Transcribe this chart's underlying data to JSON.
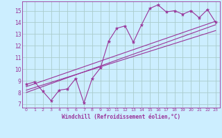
{
  "bg_color": "#cceeff",
  "grid_color": "#aacccc",
  "line_color": "#993399",
  "xlabel": "Windchill (Refroidissement éolien,°C)",
  "xlim": [
    -0.5,
    23.5
  ],
  "ylim": [
    6.7,
    15.8
  ],
  "yticks": [
    7,
    8,
    9,
    10,
    11,
    12,
    13,
    14,
    15
  ],
  "xticks": [
    0,
    1,
    2,
    3,
    4,
    5,
    6,
    7,
    8,
    9,
    10,
    11,
    12,
    13,
    14,
    15,
    16,
    17,
    18,
    19,
    20,
    21,
    22,
    23
  ],
  "scatter_x": [
    0,
    1,
    2,
    3,
    4,
    5,
    6,
    7,
    8,
    9,
    10,
    11,
    12,
    13,
    14,
    15,
    16,
    17,
    18,
    19,
    20,
    21,
    22,
    23
  ],
  "scatter_y": [
    8.7,
    8.9,
    8.1,
    7.3,
    8.2,
    8.3,
    9.2,
    7.1,
    9.2,
    10.1,
    12.4,
    13.5,
    13.7,
    12.3,
    13.8,
    15.2,
    15.5,
    14.9,
    15.0,
    14.7,
    15.0,
    14.4,
    15.1,
    14.0
  ],
  "line1_x": [
    0,
    23
  ],
  "line1_y": [
    8.5,
    14.1
  ],
  "line2_x": [
    0,
    23
  ],
  "line2_y": [
    8.2,
    13.3
  ],
  "line3_x": [
    0,
    23
  ],
  "line3_y": [
    8.0,
    13.8
  ]
}
